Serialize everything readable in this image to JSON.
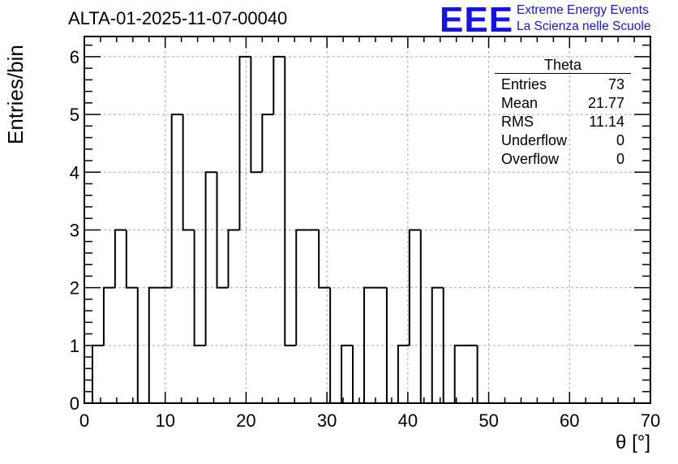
{
  "title": "ALTA-01-2025-11-07-00040",
  "logo": {
    "mark": "EEE",
    "line1": "Extreme Energy Events",
    "line2": "La Scienza nelle Scuole",
    "color": "#1414e8"
  },
  "stats_box": {
    "name": "Theta",
    "rows": [
      {
        "label": "Entries",
        "value": "73"
      },
      {
        "label": "Mean",
        "value": "21.77"
      },
      {
        "label": "RMS",
        "value": "11.14"
      },
      {
        "label": "Underflow",
        "value": "0"
      },
      {
        "label": "Overflow",
        "value": "0"
      }
    ]
  },
  "chart_data": {
    "type": "bar",
    "title": "ALTA-01-2025-11-07-00040",
    "xlabel": "θ [°]",
    "ylabel": "Entries/bin",
    "xlim": [
      0,
      70
    ],
    "ylim": [
      0,
      6.35
    ],
    "x_ticks": [
      "0",
      "10",
      "20",
      "30",
      "40",
      "50",
      "60",
      "70"
    ],
    "y_ticks": [
      "0",
      "1",
      "2",
      "3",
      "4",
      "5",
      "6"
    ],
    "grid": true,
    "bin_width": 1.4,
    "bin_low_edges": [
      1.0,
      2.4,
      3.8,
      5.2,
      6.6,
      8.0,
      9.4,
      10.8,
      12.2,
      13.6,
      15.0,
      16.4,
      17.8,
      19.2,
      20.6,
      22.0,
      23.4,
      24.8,
      26.2,
      27.6,
      29.0,
      30.4,
      31.8,
      33.2,
      34.6,
      36.0,
      37.4,
      38.8,
      40.2,
      41.6,
      43.0,
      44.4,
      45.8,
      47.2,
      48.6
    ],
    "values": [
      1,
      2,
      3,
      2,
      0,
      2,
      2,
      5,
      3,
      1,
      4,
      2,
      3,
      6,
      4,
      5,
      6,
      1,
      3,
      3,
      2,
      0,
      1,
      0,
      2,
      2,
      0,
      1,
      3,
      0,
      2,
      0,
      1,
      1,
      0
    ],
    "line_color": "#000000"
  }
}
